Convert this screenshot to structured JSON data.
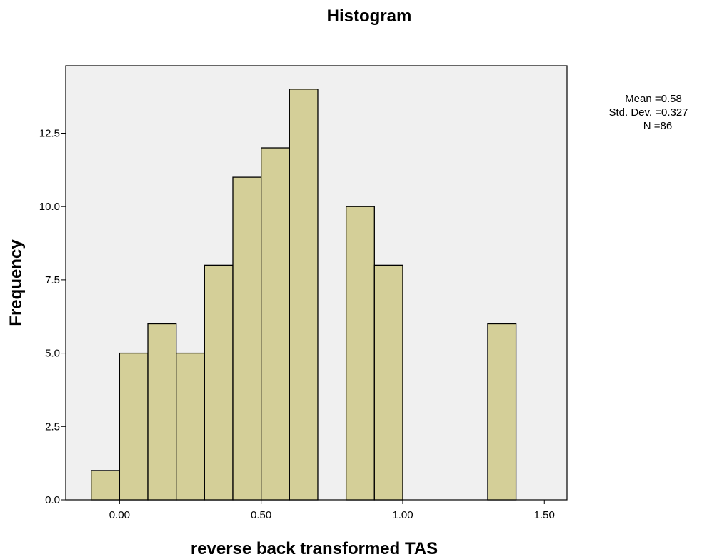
{
  "chart_data": {
    "type": "bar",
    "title": "Histogram",
    "xlabel": "reverse back transformed TAS",
    "ylabel": "Frequency",
    "bin_width": 0.1,
    "bins": [
      {
        "start": -0.1,
        "end": 0.0,
        "count": 1
      },
      {
        "start": 0.0,
        "end": 0.1,
        "count": 5
      },
      {
        "start": 0.1,
        "end": 0.2,
        "count": 6
      },
      {
        "start": 0.2,
        "end": 0.3,
        "count": 5
      },
      {
        "start": 0.3,
        "end": 0.4,
        "count": 8
      },
      {
        "start": 0.4,
        "end": 0.5,
        "count": 11
      },
      {
        "start": 0.5,
        "end": 0.6,
        "count": 12
      },
      {
        "start": 0.6,
        "end": 0.7,
        "count": 14
      },
      {
        "start": 0.8,
        "end": 0.9,
        "count": 10
      },
      {
        "start": 0.9,
        "end": 1.0,
        "count": 8
      },
      {
        "start": 1.3,
        "end": 1.4,
        "count": 6
      }
    ],
    "xlim": [
      -0.19,
      1.58
    ],
    "ylim": [
      0,
      14.8
    ],
    "x_ticks": [
      {
        "value": 0.0,
        "label": "0.00"
      },
      {
        "value": 0.5,
        "label": "0.50"
      },
      {
        "value": 1.0,
        "label": "1.00"
      },
      {
        "value": 1.5,
        "label": "1.50"
      }
    ],
    "y_ticks": [
      {
        "value": 0,
        "label": "0.0"
      },
      {
        "value": 2.5,
        "label": "2.5"
      },
      {
        "value": 5.0,
        "label": "5.0"
      },
      {
        "value": 7.5,
        "label": "7.5"
      },
      {
        "value": 10.0,
        "label": "10.0"
      },
      {
        "value": 12.5,
        "label": "12.5"
      }
    ],
    "bar_color": "#d4cf98",
    "plot_background": "#f0f0f0",
    "grid": false,
    "stats": {
      "mean_line": "Mean =0.58",
      "std_line": "Std. Dev. =0.327",
      "n_line": "N =86"
    },
    "legend_position": "top-right"
  }
}
